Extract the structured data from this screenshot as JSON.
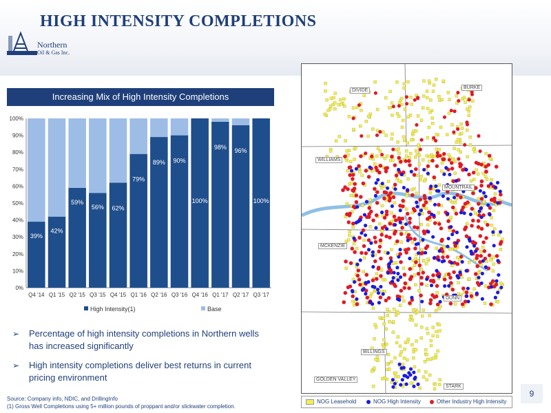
{
  "page": {
    "title": "HIGH INTENSITY COMPLETIONS",
    "logo_line1": "Northern",
    "logo_line2": "Oil & Gas Inc.",
    "page_number": "9"
  },
  "chart_panel": {
    "header": "Increasing Mix of High Intensity Completions"
  },
  "chart_data": {
    "type": "bar",
    "stacked": true,
    "categories": [
      "Q4 '14",
      "Q1 '15",
      "Q2 '15",
      "Q3 '15",
      "Q4 '15",
      "Q1 '16",
      "Q2 '16",
      "Q3 '16",
      "Q4 '16",
      "Q1 '17",
      "Q2 '17",
      "Q3 '17"
    ],
    "series": [
      {
        "name": "High Intensity(1)",
        "color": "#1f4e8c",
        "values": [
          39,
          42,
          59,
          56,
          62,
          79,
          89,
          90,
          100,
          98,
          96,
          100
        ]
      },
      {
        "name": "Base",
        "color": "#9dbde6",
        "values": [
          61,
          58,
          41,
          44,
          38,
          21,
          11,
          10,
          0,
          2,
          4,
          0
        ]
      }
    ],
    "data_labels": [
      "39%",
      "42%",
      "59%",
      "56%",
      "62%",
      "79%",
      "89%",
      "90%",
      "100%",
      "98%",
      "96%",
      "100%"
    ],
    "ylim": [
      0,
      100
    ],
    "yticks": [
      "0%",
      "10%",
      "20%",
      "30%",
      "40%",
      "50%",
      "60%",
      "70%",
      "80%",
      "90%",
      "100%"
    ],
    "legend": "bottom",
    "grid": false
  },
  "bullets": [
    "Percentage of high intensity completions in Northern wells has increased significantly",
    "High intensity completions deliver best returns in current pricing environment"
  ],
  "bullet_marker": "➢",
  "source": {
    "line1": "Source:  Company info, NDIC, and DrillingInfo",
    "line2": "(1) Gross Well Completions using 5+ million pounds of proppant and/or slickwater completion."
  },
  "map": {
    "counties": [
      "DIVIDE",
      "BURKE",
      "WILLIAMS",
      "MOUNTRAIL",
      "MCKENZIE",
      "DUNN",
      "BILLINGS",
      "GOLDEN VALLEY",
      "STARK"
    ],
    "legend": [
      {
        "label": "NOG Leasehold",
        "color": "#f2ee5a"
      },
      {
        "label": "NOG High Intensity",
        "color": "#1b1be0"
      },
      {
        "label": "Other Industry High Intensity",
        "color": "#e01b24"
      }
    ],
    "colors": {
      "leasehold": "#f2ee5a",
      "nog": "#1b1be0",
      "other": "#e01b24",
      "river": "#8fc0e6"
    }
  }
}
